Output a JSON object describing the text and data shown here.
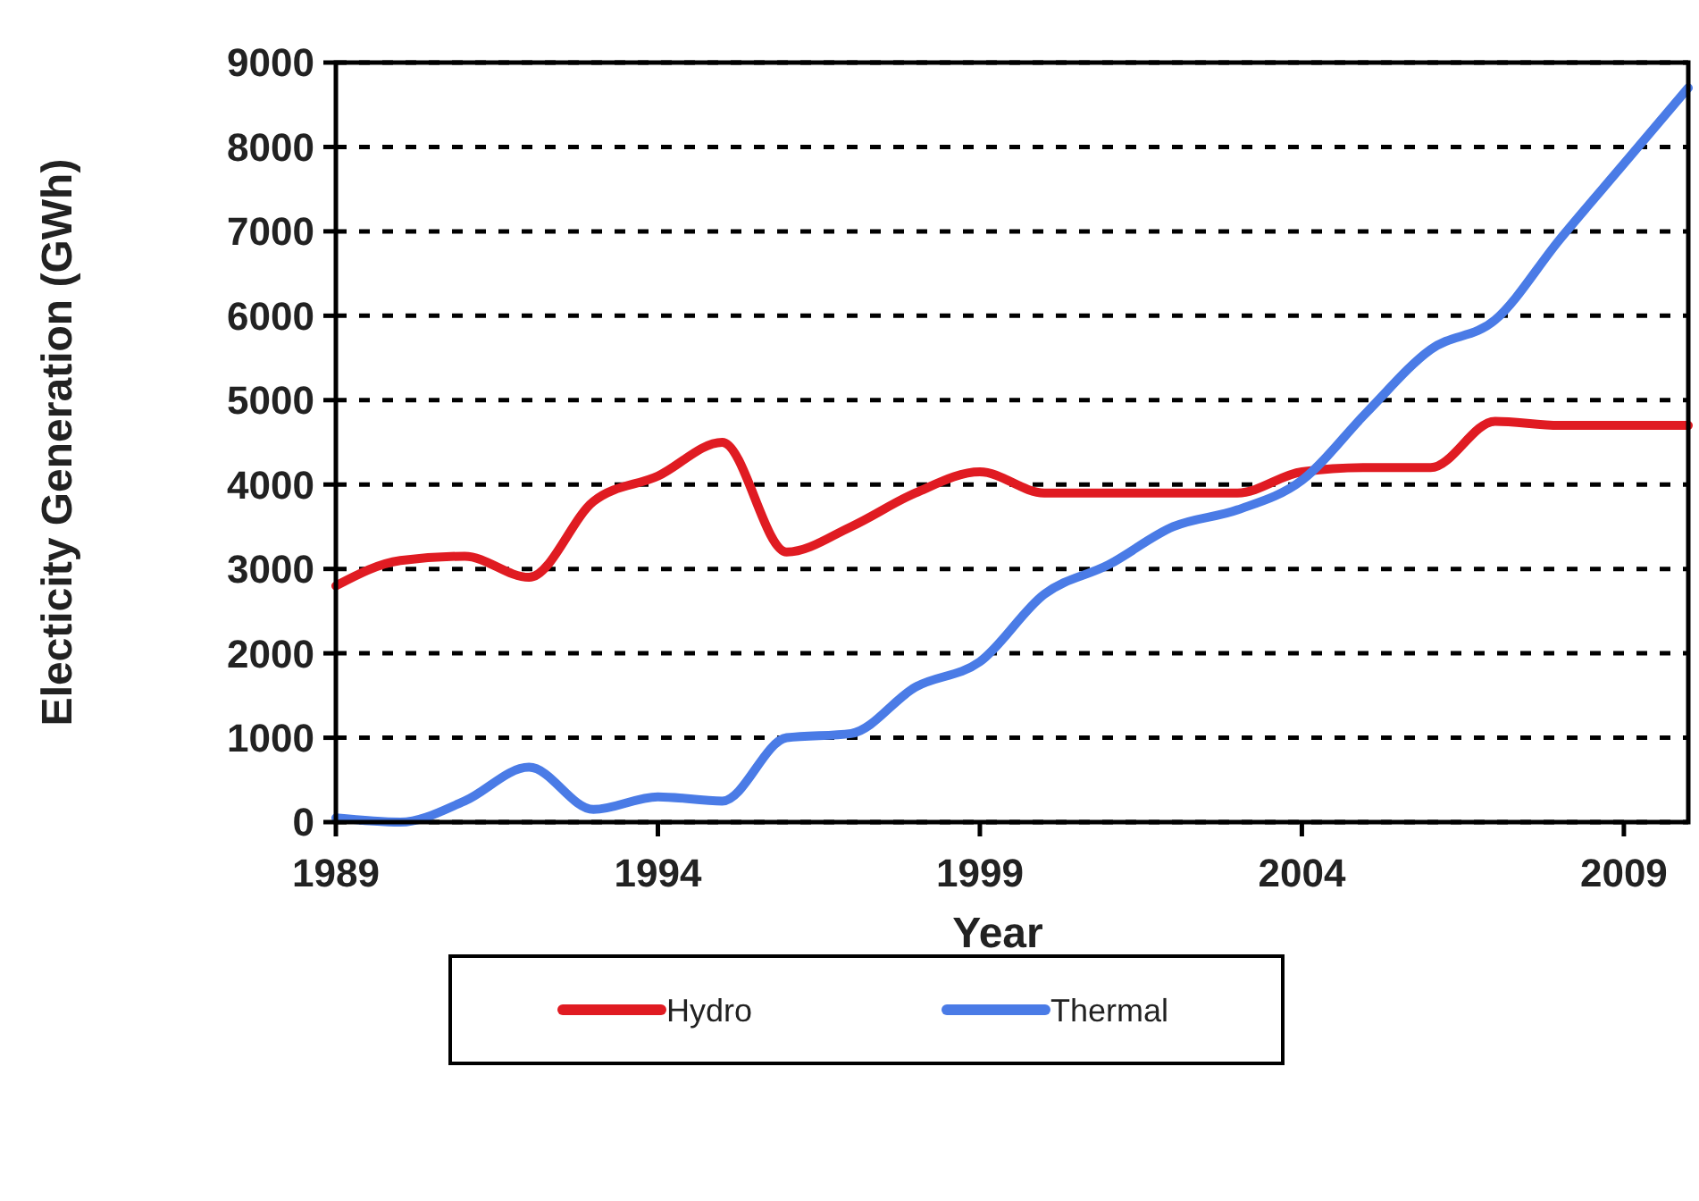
{
  "chart_data": {
    "type": "line",
    "xlabel": "Year",
    "ylabel": "Electicity Generation (GWh)",
    "x": [
      1989,
      1990,
      1991,
      1992,
      1993,
      1994,
      1995,
      1996,
      1997,
      1998,
      1999,
      2000,
      2001,
      2002,
      2003,
      2004,
      2005,
      2006,
      2007,
      2008,
      2009,
      2010
    ],
    "series": [
      {
        "name": "Hydro",
        "color": "#e01b22",
        "values": [
          2800,
          3100,
          3150,
          2900,
          3800,
          4100,
          4500,
          3200,
          3500,
          3900,
          4150,
          3900,
          3900,
          3900,
          3900,
          4150,
          4200,
          4200,
          4750,
          4700,
          4700,
          4700
        ]
      },
      {
        "name": "Thermal",
        "color": "#4a7be6",
        "values": [
          50,
          0,
          250,
          650,
          150,
          300,
          250,
          1000,
          1050,
          1600,
          1900,
          2700,
          3050,
          3500,
          3700,
          4050,
          4850,
          5600,
          5950,
          6900,
          7800,
          8700
        ]
      }
    ],
    "xlim": [
      1989,
      2010
    ],
    "xticks": [
      1989,
      1994,
      1999,
      2004,
      2009
    ],
    "ylim": [
      0,
      9000
    ],
    "yticks": [
      0,
      1000,
      2000,
      3000,
      4000,
      5000,
      6000,
      7000,
      8000,
      9000
    ],
    "grid": "y",
    "legend": "bottom",
    "marker": "none",
    "line_style": "solid"
  }
}
